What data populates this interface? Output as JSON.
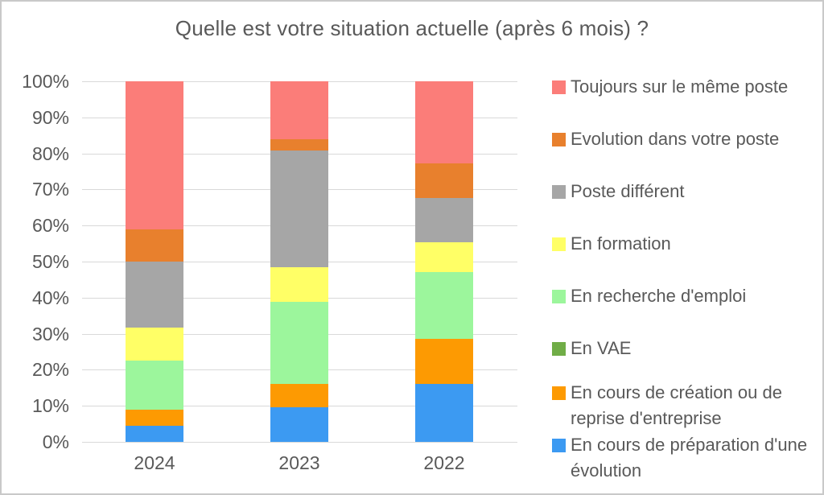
{
  "title": "Quelle est votre situation actuelle (après 6 mois) ?",
  "chart_data": {
    "type": "bar",
    "variant": "stacked-100",
    "title": "Quelle est votre situation actuelle (après 6 mois) ?",
    "categories": [
      "2024",
      "2023",
      "2022"
    ],
    "series": [
      {
        "name": "En cours de préparation d'une évolution",
        "color": "#3c9af2",
        "values": [
          4.5,
          9.7,
          16.1
        ]
      },
      {
        "name": "En cours de création ou de reprise d'entreprise",
        "color": "#fd9a02",
        "values": [
          4.5,
          6.5,
          12.5
        ]
      },
      {
        "name": "En VAE",
        "color": "#70ad47",
        "values": [
          0,
          0,
          0
        ]
      },
      {
        "name": "En recherche d'emploi",
        "color": "#9cf69c",
        "values": [
          13.6,
          22.6,
          18.6
        ]
      },
      {
        "name": "En formation",
        "color": "#ffff66",
        "values": [
          9.1,
          9.7,
          8.2
        ]
      },
      {
        "name": "Poste différent",
        "color": "#a6a6a6",
        "values": [
          18.2,
          32.3,
          12.3
        ]
      },
      {
        "name": "Evolution dans votre poste",
        "color": "#e8802d",
        "values": [
          9.1,
          3.2,
          9.5
        ]
      },
      {
        "name": "Toujours sur le même poste",
        "color": "#fb7d79",
        "values": [
          40.9,
          16.1,
          22.8
        ]
      }
    ],
    "xlabel": "",
    "ylabel": "",
    "ylim": [
      0,
      100
    ],
    "y_ticks": [
      "100%",
      "90%",
      "80%",
      "70%",
      "60%",
      "50%",
      "40%",
      "30%",
      "20%",
      "10%",
      "0%"
    ],
    "grid": "horizontal",
    "legend_position": "right",
    "legend_order_top_to_bottom": [
      "Toujours sur le même poste",
      "Evolution dans votre poste",
      "Poste différent",
      "En formation",
      "En recherche d'emploi",
      "En VAE",
      "En cours de création ou de reprise d'entreprise",
      "En cours de préparation d'une évolution"
    ]
  },
  "colors": {
    "text": "#595959",
    "gridline": "#d9d9d9",
    "border": "#c9c9c9",
    "background": "#ffffff"
  }
}
